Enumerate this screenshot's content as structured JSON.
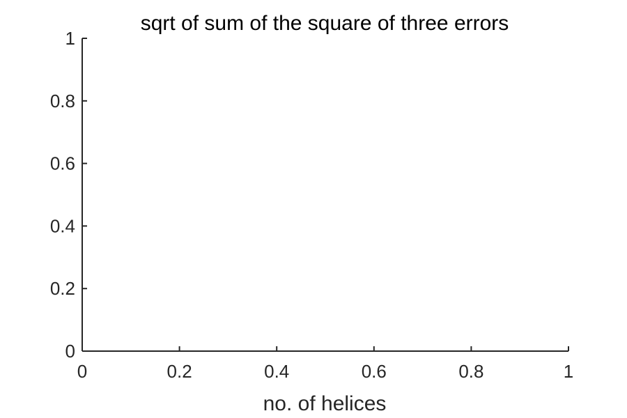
{
  "chart_data": {
    "type": "line",
    "title": "sqrt of sum of the square of three errors",
    "xlabel": "no. of helices",
    "ylabel": "",
    "xlim": [
      0,
      1
    ],
    "ylim": [
      0,
      1
    ],
    "xticks": [
      0,
      0.2,
      0.4,
      0.6,
      0.8,
      1
    ],
    "xtick_labels": [
      "0",
      "0.2",
      "0.4",
      "0.6",
      "0.8",
      "1"
    ],
    "yticks": [
      0,
      0.2,
      0.4,
      0.6,
      0.8,
      1
    ],
    "ytick_labels": [
      "0",
      "0.2",
      "0.4",
      "0.6",
      "0.8",
      "1"
    ],
    "grid": false,
    "box": false,
    "series": []
  }
}
